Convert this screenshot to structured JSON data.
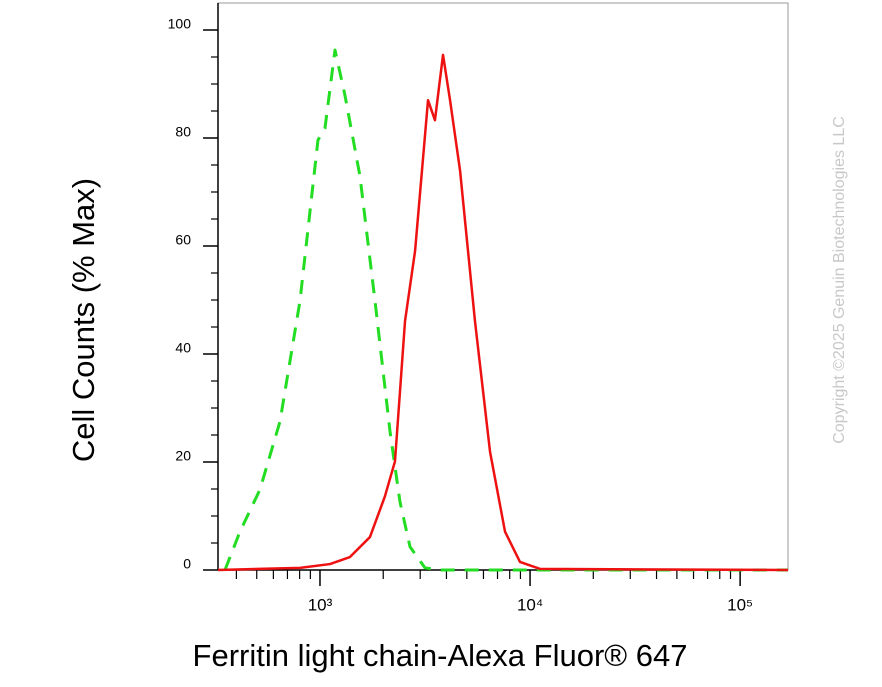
{
  "chart_data": {
    "type": "line",
    "x_label": "Ferritin light chain-Alexa Fluor® 647",
    "y_label": "Cell Counts (% Max)",
    "watermark": "Copyright ©2025 Genuin Biotechnologies LLC",
    "xscale": "log",
    "xlim": [
      327,
      169000
    ],
    "ylim": [
      0,
      105
    ],
    "xticks": [
      {
        "value": 1000,
        "label": "10³"
      },
      {
        "value": 10000,
        "label": "10⁴"
      },
      {
        "value": 100000,
        "label": "10⁵"
      }
    ],
    "xminorticks": [
      400,
      500,
      600,
      700,
      800,
      900,
      2000,
      3000,
      4000,
      5000,
      6000,
      7000,
      8000,
      9000,
      20000,
      30000,
      40000,
      50000,
      60000,
      70000,
      80000,
      90000
    ],
    "yticks": [
      0,
      20,
      40,
      60,
      80,
      100
    ],
    "yminorticks": [
      5,
      10,
      15,
      25,
      30,
      35,
      45,
      50,
      55,
      65,
      70,
      75,
      85,
      90,
      95
    ],
    "series": [
      {
        "color": "#22dd22",
        "dashed": true,
        "x": [
          353,
          416,
          518,
          645,
          803,
          978,
          1056,
          1179,
          1315,
          1549,
          1828,
          2154,
          2404,
          2683,
          3162,
          3727,
          21544,
          169000
        ],
        "values": [
          0,
          7.1,
          14.9,
          27.5,
          49.8,
          79.6,
          81.8,
          96.3,
          87.9,
          73.0,
          49.8,
          25.7,
          12.6,
          4.3,
          0.4,
          0,
          0,
          0
        ]
      },
      {
        "color": "#ee1111",
        "dashed": false,
        "x": [
          327,
          803,
          1116,
          1389,
          1729,
          2036,
          2275,
          2540,
          2836,
          3268,
          3526,
          3852,
          4160,
          4642,
          5467,
          6449,
          7600,
          8955,
          11170,
          169000
        ],
        "values": [
          0,
          0.4,
          1.1,
          2.4,
          6.1,
          13.6,
          20.1,
          46.1,
          59.1,
          87.0,
          83.3,
          95.4,
          87.0,
          74.0,
          46.1,
          21.9,
          7.1,
          1.5,
          0.2,
          0
        ]
      }
    ]
  }
}
